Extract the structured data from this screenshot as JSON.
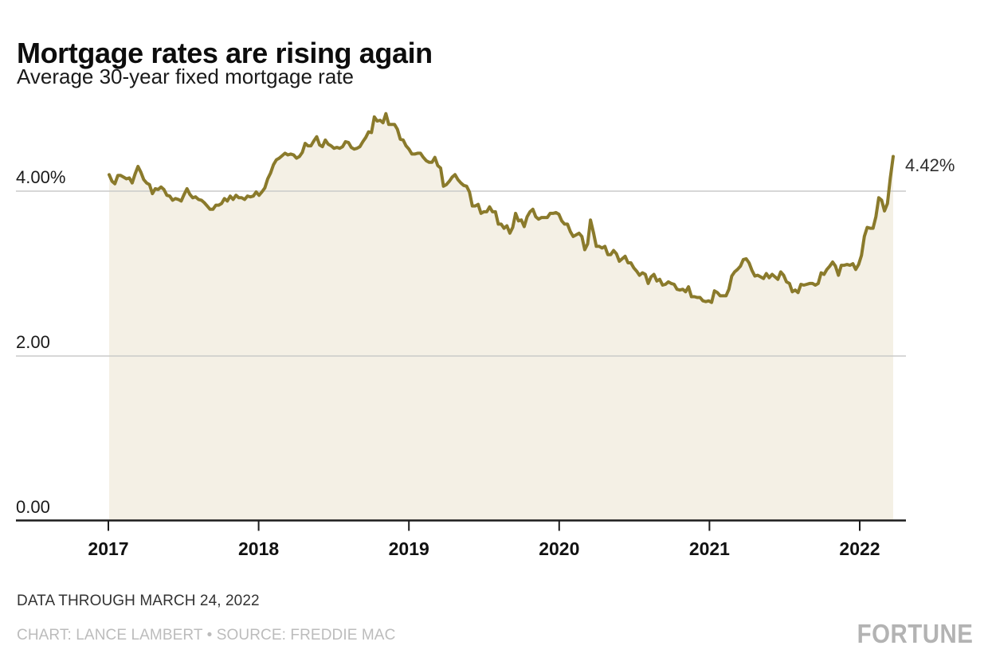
{
  "header": {
    "title": "Mortgage rates are rising again",
    "subtitle": "Average 30-year fixed mortgage rate"
  },
  "footer": {
    "data_through": "DATA THROUGH MARCH 24, 2022",
    "credit": "CHART: LANCE LAMBERT • SOURCE: FREDDIE MAC",
    "brand": "FORTUNE"
  },
  "colors": {
    "line": "#8a7a2b",
    "fill": "#f4f0e5",
    "grid": "#cacaca",
    "axis": "#1c1c1c",
    "tick_label": "#111111",
    "y_label": "#1a1a1a",
    "end_label": "#2e2e2e"
  },
  "chart_data": {
    "type": "area",
    "title": "Mortgage rates are rising again",
    "subtitle": "Average 30-year fixed mortgage rate",
    "ylabel": "Average 30-year fixed mortgage rate (%)",
    "xlabel": "",
    "frequency": "weekly",
    "x_start": "2017-01-05",
    "x_end": "2022-03-24",
    "ylim": [
      0,
      5.2
    ],
    "grid": "horizontal",
    "x_ticks": [
      "2017",
      "2018",
      "2019",
      "2020",
      "2021",
      "2022"
    ],
    "y_ticks": [
      {
        "value": 4,
        "label": "4.00%"
      },
      {
        "value": 2,
        "label": "2.00"
      },
      {
        "value": 0,
        "label": "0.00"
      }
    ],
    "end_label": "4.42%",
    "end_value": 4.42,
    "series": [
      {
        "name": "Average 30-year fixed mortgage rate",
        "values": [
          4.2,
          4.12,
          4.09,
          4.19,
          4.19,
          4.17,
          4.15,
          4.16,
          4.1,
          4.21,
          4.3,
          4.23,
          4.14,
          4.1,
          4.08,
          3.97,
          4.03,
          4.02,
          4.05,
          4.02,
          3.95,
          3.94,
          3.89,
          3.91,
          3.9,
          3.88,
          3.96,
          4.03,
          3.96,
          3.92,
          3.93,
          3.9,
          3.89,
          3.86,
          3.82,
          3.78,
          3.78,
          3.83,
          3.83,
          3.85,
          3.91,
          3.88,
          3.94,
          3.9,
          3.95,
          3.92,
          3.92,
          3.9,
          3.94,
          3.93,
          3.94,
          3.99,
          3.95,
          3.99,
          4.04,
          4.15,
          4.22,
          4.32,
          4.38,
          4.4,
          4.43,
          4.46,
          4.44,
          4.45,
          4.44,
          4.4,
          4.42,
          4.47,
          4.58,
          4.55,
          4.55,
          4.61,
          4.66,
          4.56,
          4.54,
          4.62,
          4.57,
          4.55,
          4.52,
          4.53,
          4.52,
          4.54,
          4.6,
          4.59,
          4.53,
          4.51,
          4.52,
          4.54,
          4.6,
          4.65,
          4.72,
          4.71,
          4.9,
          4.85,
          4.86,
          4.83,
          4.94,
          4.81,
          4.81,
          4.81,
          4.75,
          4.63,
          4.62,
          4.55,
          4.51,
          4.45,
          4.45,
          4.46,
          4.46,
          4.41,
          4.37,
          4.35,
          4.35,
          4.41,
          4.31,
          4.28,
          4.06,
          4.08,
          4.12,
          4.17,
          4.2,
          4.14,
          4.1,
          4.07,
          4.06,
          3.99,
          3.82,
          3.82,
          3.84,
          3.73,
          3.75,
          3.75,
          3.81,
          3.75,
          3.75,
          3.6,
          3.6,
          3.55,
          3.58,
          3.49,
          3.56,
          3.73,
          3.64,
          3.65,
          3.57,
          3.69,
          3.75,
          3.78,
          3.69,
          3.66,
          3.68,
          3.68,
          3.68,
          3.73,
          3.73,
          3.74,
          3.72,
          3.64,
          3.6,
          3.6,
          3.51,
          3.45,
          3.47,
          3.49,
          3.45,
          3.29,
          3.36,
          3.65,
          3.5,
          3.33,
          3.33,
          3.31,
          3.33,
          3.23,
          3.23,
          3.28,
          3.24,
          3.15,
          3.18,
          3.21,
          3.13,
          3.13,
          3.07,
          3.03,
          2.98,
          3.01,
          2.99,
          2.88,
          2.96,
          2.99,
          2.91,
          2.93,
          2.86,
          2.87,
          2.9,
          2.88,
          2.87,
          2.81,
          2.8,
          2.81,
          2.78,
          2.84,
          2.72,
          2.72,
          2.71,
          2.71,
          2.67,
          2.66,
          2.67,
          2.65,
          2.79,
          2.77,
          2.73,
          2.73,
          2.73,
          2.81,
          2.97,
          3.02,
          3.05,
          3.09,
          3.17,
          3.18,
          3.13,
          3.04,
          2.97,
          2.98,
          2.96,
          2.94,
          3.0,
          2.95,
          2.99,
          2.96,
          2.93,
          3.02,
          2.98,
          2.9,
          2.88,
          2.78,
          2.8,
          2.77,
          2.87,
          2.86,
          2.87,
          2.88,
          2.88,
          2.86,
          2.88,
          3.01,
          2.99,
          3.05,
          3.09,
          3.14,
          3.09,
          2.98,
          3.1,
          3.1,
          3.11,
          3.1,
          3.12,
          3.05,
          3.11,
          3.22,
          3.45,
          3.56,
          3.55,
          3.55,
          3.69,
          3.92,
          3.89,
          3.76,
          3.85,
          4.16,
          4.42
        ]
      }
    ]
  }
}
